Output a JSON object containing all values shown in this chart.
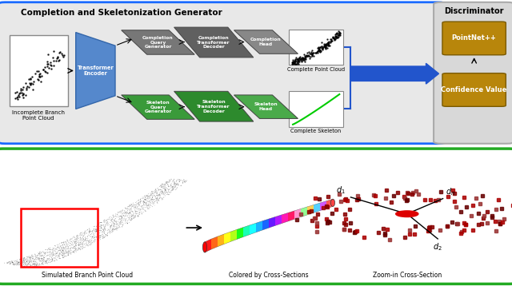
{
  "fig_width": 6.4,
  "fig_height": 3.58,
  "top_border_color": "#1a6aff",
  "bottom_border_color": "#22aa22",
  "top_bg": "#e8e8e8",
  "gold_color": "#b8860b",
  "blue_trapezoid_color": "#5588cc",
  "title_top": "Completion and Skeletonization Generator",
  "title_discriminator": "Discriminator",
  "label_incomplete": "Incomplete Branch\nPoint Cloud",
  "label_transformer_encoder": "Transformer\nEncoder",
  "label_completion_query": "Completion\nQuery\nGenerator",
  "label_completion_transformer": "Completion\nTransformer\nDecoder",
  "label_completion_head": "Completion\nHead",
  "label_complete_point_cloud": "Complete Point Cloud",
  "label_skeleton_query": "Skeleton\nQuery\nGenerator",
  "label_skeleton_transformer": "Skeleton\nTransformer\nDecoder",
  "label_skeleton_head": "Skeleton\nHead",
  "label_complete_skeleton": "Complete Skeleton",
  "label_pointnet": "PointNet++",
  "label_confidence": "Confidence Value",
  "label_simulated": "Simulated Branch Point Cloud",
  "label_colored": "Colored by Cross-Sections",
  "label_zoomin": "Zoom-in Cross-Section"
}
